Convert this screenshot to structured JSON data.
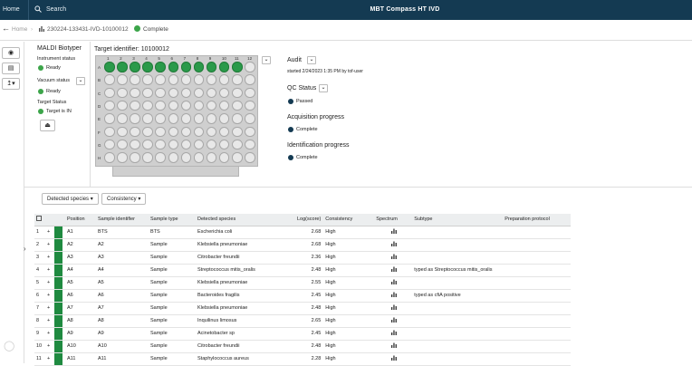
{
  "topbar": {
    "home": "Home",
    "search": "Search",
    "title": "MBT Compass HT IVD"
  },
  "breadcrumb": {
    "back": "←",
    "home": "Home",
    "separator": "›",
    "sample": "230224-133431-IVD-10100012",
    "status": "Complete"
  },
  "leftbar": {
    "icons": [
      "eye-slash-icon",
      "document-icon",
      "export-icon"
    ]
  },
  "instrument": {
    "title": "MALDI Biotyper",
    "instrument_status_label": "Instrument status",
    "instrument_status": "Ready",
    "vacuum_status_label": "Vacuum status",
    "vacuum_status": "Ready",
    "target_status_label": "Target Status",
    "target_status": "Target is IN",
    "eject_icon": "eject-icon"
  },
  "target": {
    "label": "Target identifier: 10100012",
    "columns": [
      "1",
      "2",
      "3",
      "4",
      "5",
      "6",
      "7",
      "8",
      "9",
      "10",
      "11",
      "12"
    ],
    "rows": [
      "A",
      "B",
      "C",
      "D",
      "E",
      "F",
      "G",
      "H"
    ],
    "filled_row": "A",
    "filled_count": 11
  },
  "audit": {
    "label": "Audit",
    "text": "started 2/24/2023 1:35 PM by tof-user",
    "qc_label": "QC Status",
    "qc_value": "Passed",
    "acq_label": "Acquisition progress",
    "acq_value": "Complete",
    "id_label": "Identification progress",
    "id_value": "Complete",
    "colors": {
      "status_dot": "#143a52",
      "ready": "#3ca54a"
    }
  },
  "filters": {
    "species": "Detected species",
    "consistency": "Consistency"
  },
  "table": {
    "headers": [
      "",
      "Position",
      "Sample identifier",
      "Sample type",
      "Detected species",
      "Log(score)",
      "Consistency",
      "Spectrum",
      "Subtype",
      "Preparation protocol"
    ],
    "rows": [
      {
        "n": "1",
        "pos": "A1",
        "id": "BTS",
        "type": "BTS",
        "species": "Escherichia coli",
        "score": "2.68",
        "cons": "High",
        "sub": ""
      },
      {
        "n": "2",
        "pos": "A2",
        "id": "A2",
        "type": "Sample",
        "species": "Klebsiella pneumoniae",
        "score": "2.68",
        "cons": "High",
        "sub": ""
      },
      {
        "n": "3",
        "pos": "A3",
        "id": "A3",
        "type": "Sample",
        "species": "Citrobacter freundii",
        "score": "2.36",
        "cons": "High",
        "sub": ""
      },
      {
        "n": "4",
        "pos": "A4",
        "id": "A4",
        "type": "Sample",
        "species": "Streptococcus mitis_oralis",
        "score": "2.48",
        "cons": "High",
        "sub": "typed as Streptococcus mitis_oralis"
      },
      {
        "n": "5",
        "pos": "A5",
        "id": "A5",
        "type": "Sample",
        "species": "Klebsiella pneumoniae",
        "score": "2.55",
        "cons": "High",
        "sub": ""
      },
      {
        "n": "6",
        "pos": "A6",
        "id": "A6",
        "type": "Sample",
        "species": "Bacteroides fragilis",
        "score": "2.45",
        "cons": "High",
        "sub": "typed as cfiA positive"
      },
      {
        "n": "7",
        "pos": "A7",
        "id": "A7",
        "type": "Sample",
        "species": "Klebsiella pneumoniae",
        "score": "2.48",
        "cons": "High",
        "sub": ""
      },
      {
        "n": "8",
        "pos": "A8",
        "id": "A8",
        "type": "Sample",
        "species": "Inquilinus limosus",
        "score": "2.65",
        "cons": "High",
        "sub": ""
      },
      {
        "n": "9",
        "pos": "A9",
        "id": "A9",
        "type": "Sample",
        "species": "Acinetobacter sp",
        "score": "2.45",
        "cons": "High",
        "sub": ""
      },
      {
        "n": "10",
        "pos": "A10",
        "id": "A10",
        "type": "Sample",
        "species": "Citrobacter freundii",
        "score": "2.48",
        "cons": "High",
        "sub": ""
      },
      {
        "n": "11",
        "pos": "A11",
        "id": "A11",
        "type": "Sample",
        "species": "Staphylococcus aureus",
        "score": "2.28",
        "cons": "High",
        "sub": ""
      }
    ]
  }
}
